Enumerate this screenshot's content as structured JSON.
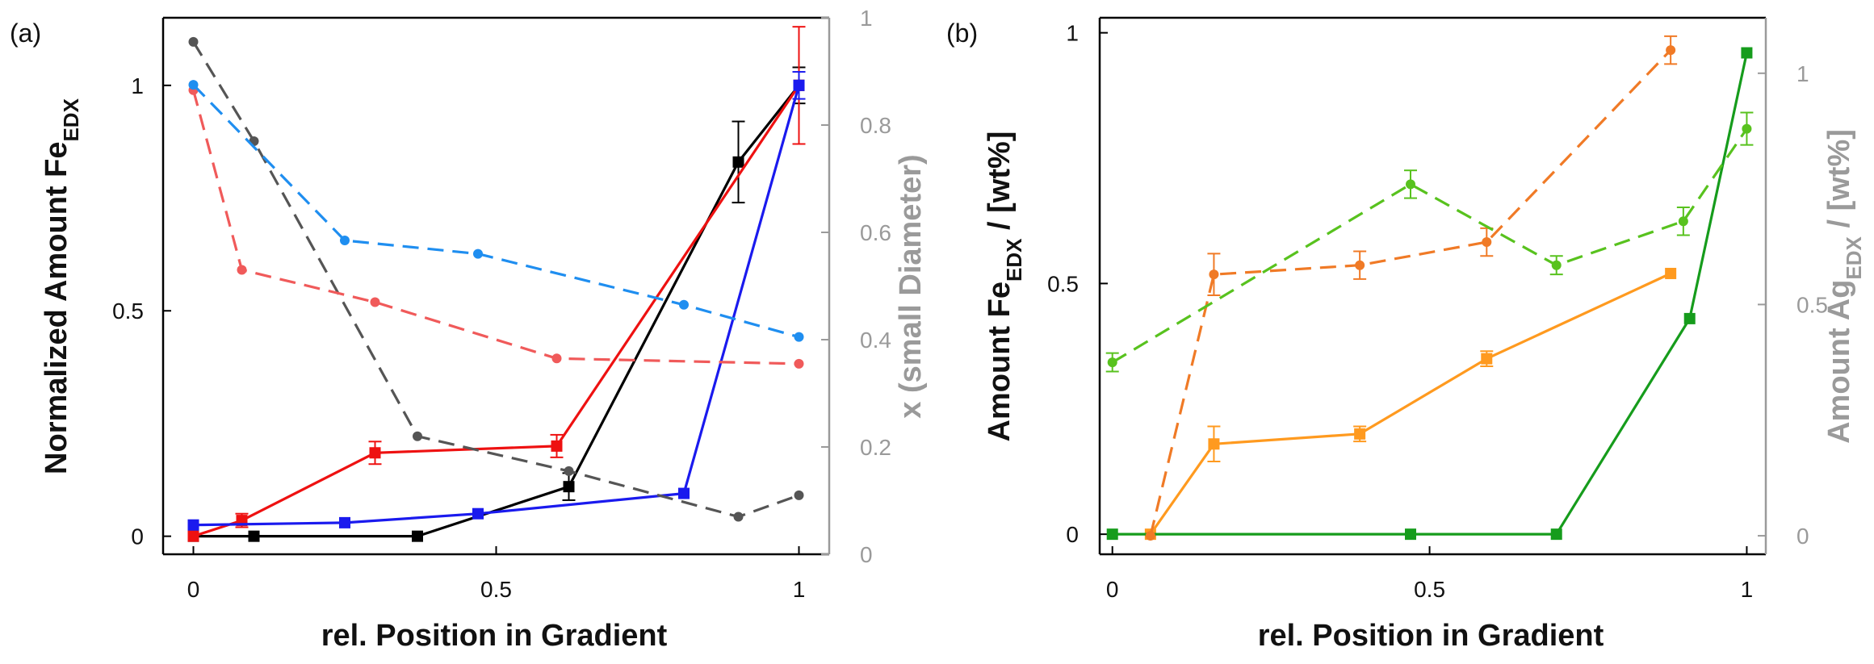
{
  "chart_data": [
    {
      "panel_label": "(a)",
      "type": "line",
      "xlabel": "rel. Position in Gradient",
      "ylabel_main": "Normalized Amount Fe",
      "ylabel_main_sub": "EDX",
      "ylabel_right": "x (small Diameter)",
      "xlim": [
        -0.05,
        1.05
      ],
      "ylim_left": [
        -0.04,
        1.15
      ],
      "ylim_right": [
        0,
        1
      ],
      "xticks": [
        {
          "v": 0,
          "label": "0"
        },
        {
          "v": 0.5,
          "label": "0.5"
        },
        {
          "v": 1,
          "label": "1"
        }
      ],
      "yticks_left": [
        {
          "v": 0,
          "label": "0"
        },
        {
          "v": 0.5,
          "label": "0.5"
        },
        {
          "v": 1,
          "label": "1"
        }
      ],
      "yticks_right": [
        {
          "v": 0,
          "label": "0"
        },
        {
          "v": 0.2,
          "label": "0.2"
        },
        {
          "v": 0.4,
          "label": "0.4"
        },
        {
          "v": 0.6,
          "label": "0.6"
        },
        {
          "v": 0.8,
          "label": "0.8"
        },
        {
          "v": 1,
          "label": "1"
        }
      ],
      "series": [
        {
          "name": "Fe black",
          "axis": "left",
          "color": "#000000",
          "dash": false,
          "marker": "square",
          "x": [
            0,
            0.1,
            0.37,
            0.62,
            0.9,
            1.0
          ],
          "y": [
            0,
            0,
            0,
            0.11,
            0.83,
            1.0
          ],
          "err": [
            0,
            0,
            0,
            0.03,
            0.09,
            0.04
          ]
        },
        {
          "name": "Fe red",
          "axis": "left",
          "color": "#ee1111",
          "dash": false,
          "marker": "square",
          "x": [
            0,
            0.08,
            0.3,
            0.6,
            1.0
          ],
          "y": [
            0,
            0.035,
            0.185,
            0.2,
            1.0
          ],
          "err": [
            0,
            0.015,
            0.025,
            0.025,
            0.13
          ]
        },
        {
          "name": "Fe blue",
          "axis": "left",
          "color": "#1a1aee",
          "dash": false,
          "marker": "square",
          "x": [
            0,
            0.25,
            0.47,
            0.81,
            1.0
          ],
          "y": [
            0.025,
            0.03,
            0.05,
            0.095,
            1.0
          ],
          "err": [
            0,
            0,
            0,
            0,
            0.03
          ]
        },
        {
          "name": "x dark grey",
          "axis": "right",
          "color": "#555555",
          "dash": true,
          "marker": "circle",
          "x": [
            0,
            0.1,
            0.37,
            0.62,
            0.9,
            1.0
          ],
          "y": [
            0.955,
            0.77,
            0.22,
            0.155,
            0.07,
            0.11
          ],
          "err": [
            0,
            0,
            0,
            0,
            0,
            0
          ]
        },
        {
          "name": "x light red",
          "axis": "right",
          "color": "#f05a5a",
          "dash": true,
          "marker": "circle",
          "x": [
            0,
            0.08,
            0.3,
            0.6,
            1.0
          ],
          "y": [
            0.865,
            0.53,
            0.47,
            0.365,
            0.355
          ],
          "err": [
            0,
            0,
            0,
            0,
            0
          ]
        },
        {
          "name": "x light blue",
          "axis": "right",
          "color": "#1f8ef0",
          "dash": true,
          "marker": "circle",
          "x": [
            0,
            0.25,
            0.47,
            0.81,
            1.0
          ],
          "y": [
            0.875,
            0.585,
            0.56,
            0.465,
            0.405
          ],
          "err": [
            0,
            0,
            0,
            0,
            0
          ]
        }
      ]
    },
    {
      "panel_label": "(b)",
      "type": "line",
      "xlabel": "rel. Position in Gradient",
      "ylabel_main": "Amount Fe",
      "ylabel_main_sub": "EDX",
      "ylabel_main_suffix": " / [wt%]",
      "ylabel_right": "Amount Ag",
      "ylabel_right_sub": "EDX",
      "ylabel_right_suffix": " / [wt%]",
      "xlim": [
        -0.02,
        1.03
      ],
      "ylim_left": [
        -0.04,
        1.03
      ],
      "ylim_right": [
        -0.04,
        1.12
      ],
      "xticks": [
        {
          "v": 0,
          "label": "0"
        },
        {
          "v": 0.5,
          "label": "0.5"
        },
        {
          "v": 1,
          "label": "1"
        }
      ],
      "yticks_left": [
        {
          "v": 0,
          "label": "0"
        },
        {
          "v": 0.5,
          "label": "0.5"
        },
        {
          "v": 1,
          "label": "1"
        }
      ],
      "yticks_right": [
        {
          "v": 0,
          "label": "0"
        },
        {
          "v": 0.5,
          "label": "0.5"
        },
        {
          "v": 1,
          "label": "1"
        }
      ],
      "series": [
        {
          "name": "Fe orange",
          "axis": "left",
          "color": "#ff9a1f",
          "dash": false,
          "marker": "square",
          "x": [
            0.06,
            0.16,
            0.39,
            0.59,
            0.88
          ],
          "y": [
            0,
            0.18,
            0.2,
            0.35,
            0.52
          ],
          "err": [
            0,
            0.035,
            0.015,
            0.015,
            0
          ]
        },
        {
          "name": "Fe green",
          "axis": "left",
          "color": "#169c1c",
          "dash": false,
          "marker": "square",
          "x": [
            0,
            0.47,
            0.7,
            0.91,
            1.0
          ],
          "y": [
            0,
            0,
            0,
            0.43,
            0.96
          ],
          "err": [
            0,
            0,
            0,
            0,
            0
          ]
        },
        {
          "name": "Ag orange",
          "axis": "right",
          "color": "#f07a26",
          "dash": true,
          "marker": "circle",
          "x": [
            0.06,
            0.16,
            0.39,
            0.59,
            0.88
          ],
          "y": [
            0,
            0.565,
            0.585,
            0.635,
            1.05
          ],
          "err": [
            0,
            0.045,
            0.03,
            0.03,
            0.03
          ]
        },
        {
          "name": "Ag light green",
          "axis": "right",
          "color": "#58c21e",
          "dash": true,
          "marker": "circle",
          "x": [
            0,
            0.47,
            0.7,
            0.9,
            1.0
          ],
          "y": [
            0.375,
            0.76,
            0.585,
            0.68,
            0.88
          ],
          "err": [
            0.02,
            0.03,
            0.02,
            0.03,
            0.035
          ]
        }
      ]
    }
  ]
}
